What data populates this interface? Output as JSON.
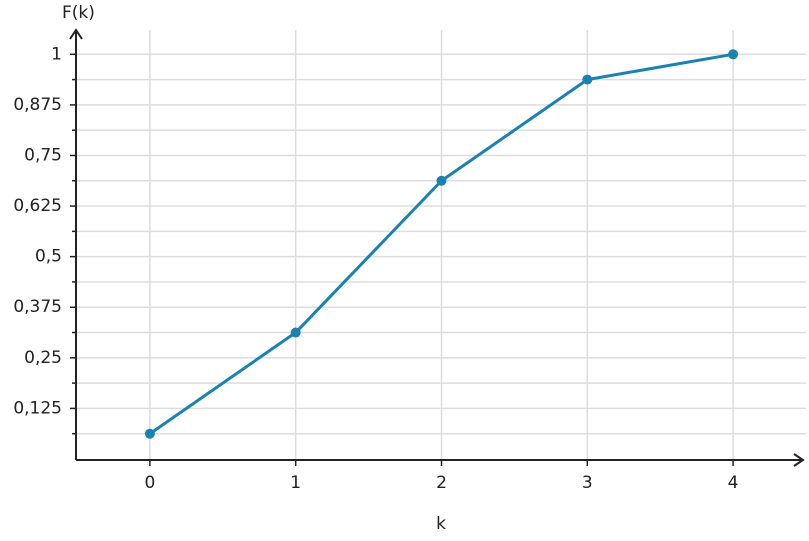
{
  "chart_data": {
    "type": "line",
    "x_label": "k",
    "y_label": "F(k)",
    "x": [
      0,
      1,
      2,
      3,
      4
    ],
    "series": [
      {
        "color": "#1a82b0",
        "values": [
          0.0625,
          0.3125,
          0.6875,
          0.9375,
          1
        ]
      }
    ],
    "xlim": [
      -0.5,
      4.5
    ],
    "xticks": [
      0,
      1,
      2,
      3,
      4
    ],
    "ylim": [
      0,
      1.0625
    ],
    "yticks": [
      {
        "value": 0.125,
        "label": "0,125"
      },
      {
        "value": 0.25,
        "label": "0,25"
      },
      {
        "value": 0.375,
        "label": "0,375"
      },
      {
        "value": 0.5,
        "label": "0,5"
      },
      {
        "value": 0.625,
        "label": "0,625"
      },
      {
        "value": 0.75,
        "label": "0,75"
      },
      {
        "value": 0.875,
        "label": "0,875"
      },
      1
    ],
    "y_minor_ticks": [
      0.0625,
      0.1875,
      0.3125,
      0.4375,
      0.5625,
      0.6875,
      0.8125,
      0.9375
    ],
    "grid": true
  }
}
